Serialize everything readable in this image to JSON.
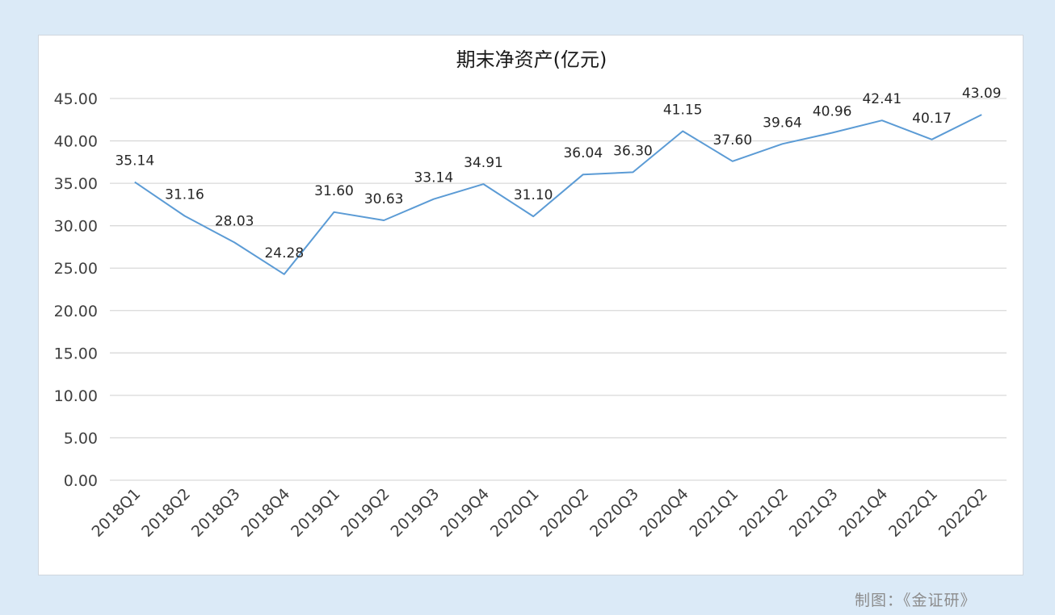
{
  "credit": "制图：《金证研》",
  "chart_data": {
    "type": "line",
    "title": "期末净资产(亿元)",
    "xlabel": "",
    "ylabel": "",
    "categories": [
      "2018Q1",
      "2018Q2",
      "2018Q3",
      "2018Q4",
      "2019Q1",
      "2019Q2",
      "2019Q3",
      "2019Q4",
      "2020Q1",
      "2020Q2",
      "2020Q3",
      "2020Q4",
      "2021Q1",
      "2021Q2",
      "2021Q3",
      "2021Q4",
      "2022Q1",
      "2022Q2"
    ],
    "series": [
      {
        "values": [
          35.14,
          31.16,
          28.03,
          24.28,
          31.6,
          30.63,
          33.14,
          34.91,
          31.1,
          36.04,
          36.3,
          41.15,
          37.6,
          39.64,
          40.96,
          42.41,
          40.17,
          43.09
        ],
        "labels": [
          "35.14",
          "31.16",
          "28.03",
          "24.28",
          "31.60",
          "30.63",
          "33.14",
          "34.91",
          "31.10",
          "36.04",
          "36.30",
          "41.15",
          "37.60",
          "39.64",
          "40.96",
          "42.41",
          "40.17",
          "43.09"
        ],
        "color": "#5b9bd5"
      }
    ],
    "ylim": [
      0,
      45
    ],
    "yticks": [
      "0.00",
      "5.00",
      "10.00",
      "15.00",
      "20.00",
      "25.00",
      "30.00",
      "35.00",
      "40.00",
      "45.00"
    ],
    "grid": true,
    "legend": "none"
  }
}
